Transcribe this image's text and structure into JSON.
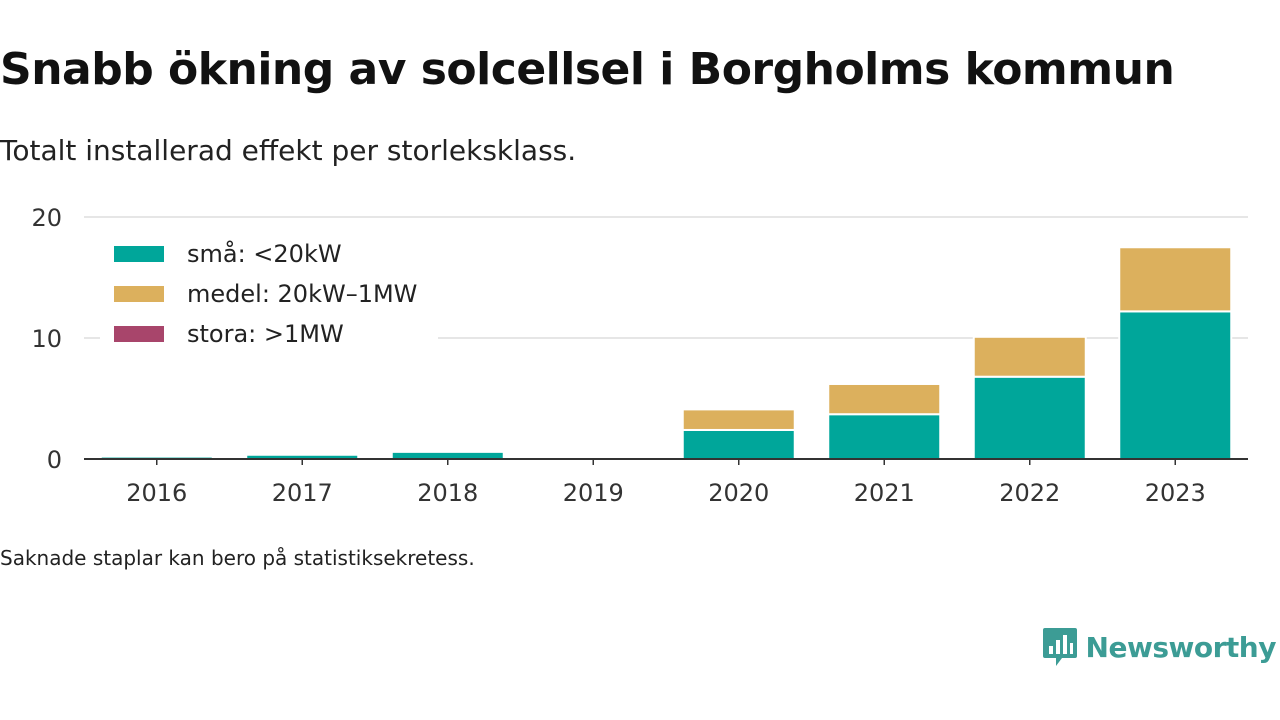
{
  "title": "Snabb ökning av solcellsel i Borgholms kommun",
  "subtitle": "Totalt installerad effekt per storleksklass.",
  "footnote": "Saknade staplar kan bero på statistiksekretess.",
  "brand": {
    "name": "Newsworthy",
    "icon": "newsworthy-logo-icon",
    "color": "#3c9c95"
  },
  "chart_data": {
    "type": "bar",
    "stacked": true,
    "categories": [
      "2016",
      "2017",
      "2018",
      "2019",
      "2020",
      "2021",
      "2022",
      "2023"
    ],
    "series": [
      {
        "name": "små: <20kW",
        "color": "#00a69a",
        "values": [
          0.2,
          0.35,
          0.6,
          0,
          2.4,
          3.7,
          6.8,
          12.2
        ]
      },
      {
        "name": "medel: 20kW–1MW",
        "color": "#dcb05d",
        "values": [
          0,
          0,
          0.1,
          0,
          1.7,
          2.5,
          3.3,
          5.3
        ]
      },
      {
        "name": "stora: >1MW",
        "color": "#a8456b",
        "values": [
          0,
          0,
          0,
          0,
          0,
          0,
          0,
          0
        ]
      }
    ],
    "yticks": [
      0,
      10,
      20
    ],
    "ylim": [
      0,
      20
    ],
    "grid": true,
    "legend": "top-left"
  }
}
